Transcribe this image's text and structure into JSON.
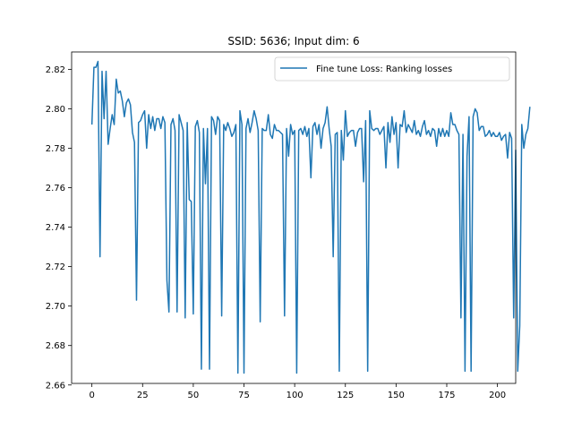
{
  "chart_data": {
    "type": "line",
    "title": "SSID: 5636; Input dim: 6",
    "xlabel": "",
    "ylabel": "",
    "xlim": [
      -10,
      209
    ],
    "ylim": [
      2.6608,
      2.8288
    ],
    "xticks": [
      0,
      25,
      50,
      75,
      100,
      125,
      150,
      175,
      200
    ],
    "yticks": [
      2.66,
      2.68,
      2.7,
      2.72,
      2.74,
      2.76,
      2.78,
      2.8,
      2.82
    ],
    "grid": false,
    "legend_position": "top-right",
    "series": [
      {
        "name": "Fine tune Loss: Ranking losses",
        "color": "#1f77b4",
        "values": [
          2.792,
          2.821,
          2.821,
          2.824,
          2.725,
          2.819,
          2.795,
          2.819,
          2.782,
          2.79,
          2.797,
          2.792,
          2.815,
          2.808,
          2.809,
          2.804,
          2.796,
          2.803,
          2.805,
          2.802,
          2.788,
          2.783,
          2.703,
          2.793,
          2.794,
          2.797,
          2.799,
          2.78,
          2.797,
          2.79,
          2.796,
          2.789,
          2.795,
          2.795,
          2.79,
          2.796,
          2.793,
          2.713,
          2.697,
          2.792,
          2.795,
          2.789,
          2.697,
          2.797,
          2.793,
          2.789,
          2.694,
          2.793,
          2.754,
          2.753,
          2.696,
          2.791,
          2.794,
          2.788,
          2.668,
          2.79,
          2.762,
          2.79,
          2.668,
          2.796,
          2.794,
          2.787,
          2.796,
          2.794,
          2.695,
          2.792,
          2.789,
          2.793,
          2.79,
          2.786,
          2.788,
          2.792,
          2.666,
          2.799,
          2.792,
          2.666,
          2.79,
          2.795,
          2.788,
          2.793,
          2.799,
          2.795,
          2.789,
          2.692,
          2.79,
          2.789,
          2.789,
          2.797,
          2.787,
          2.785,
          2.792,
          2.789,
          2.789,
          2.788,
          2.787,
          2.695,
          2.79,
          2.776,
          2.792,
          2.787,
          2.789,
          2.666,
          2.789,
          2.79,
          2.787,
          2.791,
          2.786,
          2.79,
          2.765,
          2.791,
          2.793,
          2.787,
          2.792,
          2.78,
          2.79,
          2.793,
          2.801,
          2.79,
          2.781,
          2.725,
          2.787,
          2.788,
          2.667,
          2.789,
          2.774,
          2.799,
          2.786,
          2.788,
          2.789,
          2.789,
          2.781,
          2.788,
          2.79,
          2.79,
          2.763,
          2.794,
          2.667,
          2.799,
          2.79,
          2.789,
          2.79,
          2.79,
          2.787,
          2.789,
          2.791,
          2.77,
          2.793,
          2.783,
          2.796,
          2.787,
          2.793,
          2.77,
          2.792,
          2.791,
          2.799,
          2.788,
          2.792,
          2.79,
          2.788,
          2.794,
          2.787,
          2.789,
          2.786,
          2.791,
          2.794,
          2.787,
          2.789,
          2.786,
          2.79,
          2.789,
          2.781,
          2.79,
          2.786,
          2.79,
          2.786,
          2.789,
          2.786,
          2.798,
          2.792,
          2.792,
          2.789,
          2.787,
          2.694,
          2.787,
          2.667,
          2.776,
          2.796,
          2.667,
          2.796,
          2.8,
          2.798,
          2.789,
          2.791,
          2.791,
          2.786,
          2.787,
          2.789,
          2.786,
          2.788,
          2.786,
          2.786,
          2.788,
          2.784,
          2.786,
          2.787,
          2.775,
          2.788,
          2.785,
          2.694,
          2.779,
          2.667,
          2.69,
          2.792,
          2.78,
          2.787,
          2.79,
          2.801
        ]
      }
    ]
  }
}
